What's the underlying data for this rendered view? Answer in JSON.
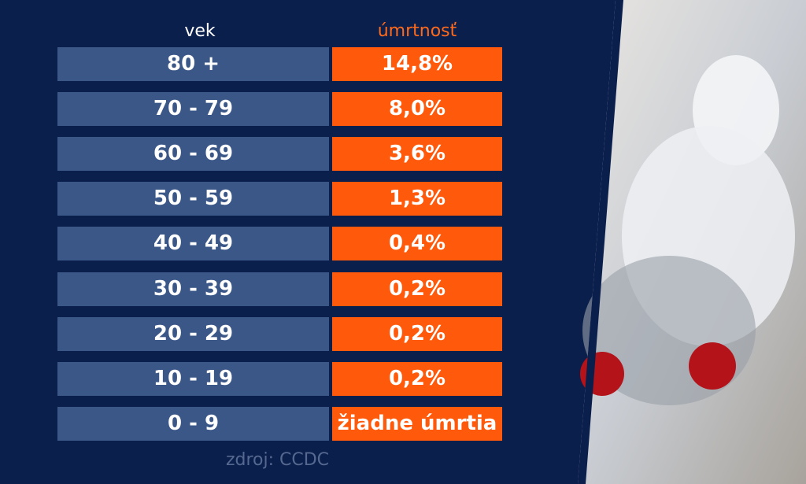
{
  "table": {
    "header": [
      "vek",
      "úmrtnosť"
    ],
    "rows": [
      [
        "80 +",
        "14,8%"
      ],
      [
        "70 - 79",
        "8,0%"
      ],
      [
        "60 - 69",
        "3,6%"
      ],
      [
        "50 - 59",
        "1,3%"
      ],
      [
        "40 - 49",
        "0,4%"
      ],
      [
        "30 - 39",
        "0,2%"
      ],
      [
        "20 - 29",
        "0,2%"
      ],
      [
        "10 - 19",
        "0,2%"
      ],
      [
        "0 - 9",
        "žiadne úmrtia"
      ]
    ]
  },
  "source": "zdroj: CCDC"
}
